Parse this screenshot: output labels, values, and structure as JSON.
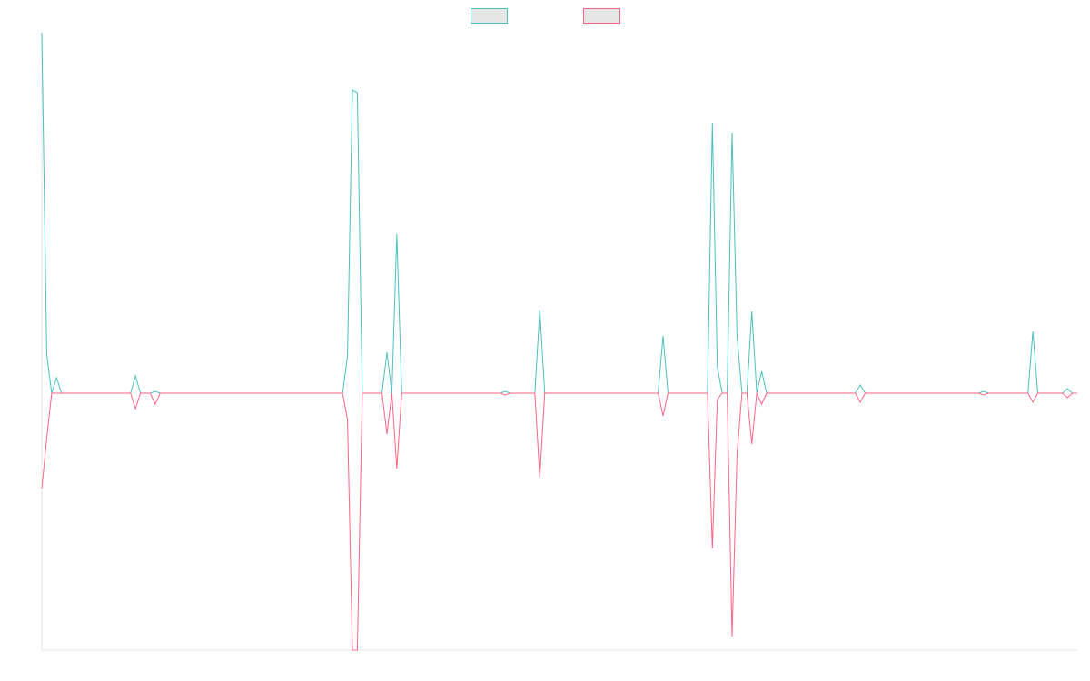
{
  "chart_data": {
    "type": "line",
    "legend": "top",
    "grid": false,
    "ylim": [
      -283,
      397
    ],
    "categories": [
      null,
      null,
      null,
      null,
      null,
      null,
      null,
      null,
      null,
      null,
      null,
      null,
      null,
      null,
      null,
      null,
      null,
      null,
      null,
      null,
      null,
      null,
      null,
      null,
      null,
      null,
      null,
      null,
      null,
      null,
      null,
      null,
      null,
      null,
      null,
      null,
      null,
      null,
      null,
      null,
      null,
      null,
      null,
      null,
      null,
      null,
      null,
      null,
      null,
      null,
      null,
      null,
      null,
      null,
      null,
      null,
      null,
      null,
      null,
      null,
      null,
      null,
      null,
      null,
      null,
      null,
      null,
      null,
      null,
      null,
      null,
      null,
      null,
      null,
      null,
      null,
      null,
      null,
      null,
      null,
      null,
      null,
      null,
      null,
      null,
      null,
      null,
      null,
      null,
      null,
      null,
      null,
      null,
      null,
      null,
      null,
      null,
      null,
      null,
      null,
      null,
      null,
      null,
      null,
      null,
      null,
      null,
      null,
      null,
      null,
      null,
      null,
      null,
      null,
      null,
      null,
      null,
      null,
      null,
      null,
      null,
      null,
      null,
      null,
      null,
      null,
      null,
      null,
      null,
      null,
      null,
      null,
      null,
      null,
      null,
      null,
      null,
      null,
      null,
      null,
      null,
      null,
      null,
      null,
      null,
      null,
      null,
      null,
      null,
      null,
      null,
      null,
      null,
      null,
      null,
      null,
      null,
      null,
      null,
      null,
      null,
      null,
      null,
      null,
      null,
      null,
      null,
      null,
      null,
      null,
      null,
      null,
      null,
      null,
      null,
      null,
      null,
      null,
      null,
      null,
      null,
      null,
      null,
      null,
      null,
      null,
      null,
      null,
      null,
      null,
      null,
      null,
      null,
      null,
      null,
      null,
      null,
      null,
      null,
      null,
      null,
      null,
      null,
      null,
      null,
      null,
      null,
      null,
      null,
      null,
      null
    ],
    "series": [
      {
        "color": "#4bc0c0",
        "values": [
          397,
          43,
          0,
          17,
          0,
          0,
          0,
          0,
          0,
          0,
          0,
          0,
          0,
          0,
          0,
          0,
          0,
          0,
          0,
          19,
          0,
          0,
          0,
          2,
          0,
          0,
          0,
          0,
          0,
          0,
          0,
          0,
          0,
          0,
          0,
          0,
          0,
          0,
          0,
          0,
          0,
          0,
          0,
          0,
          0,
          0,
          0,
          0,
          0,
          0,
          0,
          0,
          0,
          0,
          0,
          0,
          0,
          0,
          0,
          0,
          0,
          0,
          41,
          334,
          331,
          0,
          0,
          0,
          0,
          0,
          45,
          0,
          175,
          0,
          0,
          0,
          0,
          0,
          0,
          0,
          0,
          0,
          0,
          0,
          0,
          0,
          0,
          0,
          0,
          0,
          0,
          0,
          0,
          0,
          2,
          0,
          0,
          0,
          0,
          0,
          0,
          92,
          0,
          0,
          0,
          0,
          0,
          0,
          0,
          0,
          0,
          0,
          0,
          0,
          0,
          0,
          0,
          0,
          0,
          0,
          0,
          0,
          0,
          0,
          0,
          0,
          63,
          0,
          0,
          0,
          0,
          0,
          0,
          0,
          0,
          0,
          297,
          29,
          0,
          0,
          287,
          63,
          0,
          0,
          90,
          0,
          24,
          0,
          0,
          0,
          0,
          0,
          0,
          0,
          0,
          0,
          0,
          0,
          0,
          0,
          0,
          0,
          0,
          0,
          0,
          0,
          9,
          0,
          0,
          0,
          0,
          0,
          0,
          0,
          0,
          0,
          0,
          0,
          0,
          0,
          0,
          0,
          0,
          0,
          0,
          0,
          0,
          0,
          0,
          0,
          0,
          2,
          0,
          0,
          0,
          0,
          0,
          0,
          0,
          0,
          0,
          68,
          0,
          0,
          0,
          0,
          0,
          0,
          5,
          0,
          0
        ]
      },
      {
        "color": "#ff6384",
        "values": [
          -105,
          -50,
          0,
          0,
          0,
          0,
          0,
          0,
          0,
          0,
          0,
          0,
          0,
          0,
          0,
          0,
          0,
          0,
          0,
          -17,
          0,
          0,
          0,
          -12,
          0,
          0,
          0,
          0,
          0,
          0,
          0,
          0,
          0,
          0,
          0,
          0,
          0,
          0,
          0,
          0,
          0,
          0,
          0,
          0,
          0,
          0,
          0,
          0,
          0,
          0,
          0,
          0,
          0,
          0,
          0,
          0,
          0,
          0,
          0,
          0,
          0,
          0,
          -29,
          -283,
          -283,
          0,
          0,
          0,
          0,
          0,
          -45,
          0,
          -83,
          0,
          0,
          0,
          0,
          0,
          0,
          0,
          0,
          0,
          0,
          0,
          0,
          0,
          0,
          0,
          0,
          0,
          0,
          0,
          0,
          0,
          -2,
          0,
          0,
          0,
          0,
          0,
          0,
          -93,
          0,
          0,
          0,
          0,
          0,
          0,
          0,
          0,
          0,
          0,
          0,
          0,
          0,
          0,
          0,
          0,
          0,
          0,
          0,
          0,
          0,
          0,
          0,
          0,
          -25,
          0,
          0,
          0,
          0,
          0,
          0,
          0,
          0,
          0,
          -171,
          -7,
          0,
          0,
          -268,
          -67,
          0,
          0,
          -56,
          0,
          -12,
          0,
          0,
          0,
          0,
          0,
          0,
          0,
          0,
          0,
          0,
          0,
          0,
          0,
          0,
          0,
          0,
          0,
          0,
          0,
          -10,
          0,
          0,
          0,
          0,
          0,
          0,
          0,
          0,
          0,
          0,
          0,
          0,
          0,
          0,
          0,
          0,
          0,
          0,
          0,
          0,
          0,
          0,
          0,
          0,
          -2,
          0,
          0,
          0,
          0,
          0,
          0,
          0,
          0,
          0,
          -10,
          0,
          0,
          0,
          0,
          0,
          0,
          -5,
          0,
          0
        ]
      }
    ]
  }
}
